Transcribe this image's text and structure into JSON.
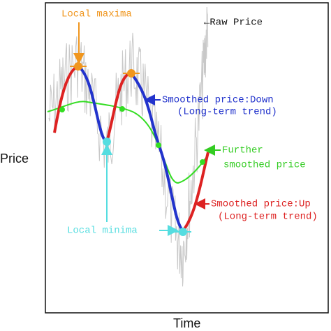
{
  "axes": {
    "y": "Price",
    "x": "Time"
  },
  "annotations": {
    "local_maxima": "Local maxima",
    "raw_price": "←Raw Price",
    "smoothed_down": [
      "Smoothed price:Down",
      "(Long-term trend)"
    ],
    "further_smoothed": [
      "Further",
      "smoothed price"
    ],
    "smoothed_up": [
      "Smoothed price:Up",
      "(Long-term trend)"
    ],
    "local_minima": "Local minima"
  }
}
